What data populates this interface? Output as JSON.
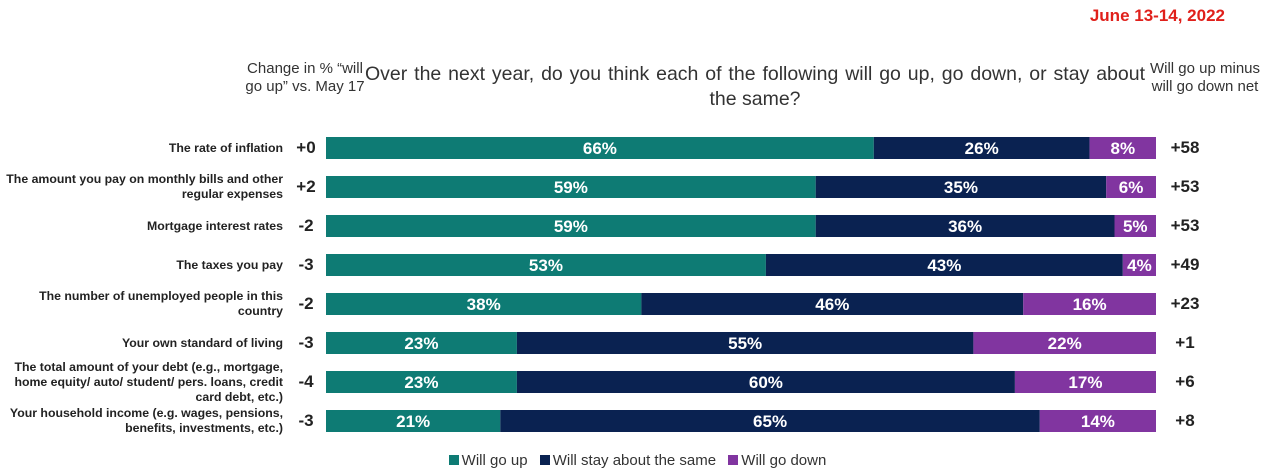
{
  "date": "June 13-14, 2022",
  "left_header": "Change in % “will go up” vs. May 17",
  "right_header": "Will go up minus will go down net",
  "chart_data": {
    "type": "bar",
    "orientation": "horizontal",
    "stacked": true,
    "title": "Over the next year, do you think each of the following will go up, go down, or stay about the same?",
    "categories": [
      "The rate of inflation",
      "The amount you pay on monthly bills and other regular expenses",
      "Mortgage interest rates",
      "The taxes you pay",
      "The number of unemployed people in this country",
      "Your own standard of living",
      "The total amount of your debt (e.g., mortgage, home equity/ auto/ student/ pers. loans, credit card debt, etc.)",
      "Your household income (e.g. wages, pensions, benefits, investments, etc.)"
    ],
    "series": [
      {
        "name": "Will go up",
        "color": "#0e7b74",
        "values": [
          66,
          59,
          59,
          53,
          38,
          23,
          23,
          21
        ]
      },
      {
        "name": "Will stay about the same",
        "color": "#0a2251",
        "values": [
          26,
          35,
          36,
          43,
          46,
          55,
          60,
          65
        ]
      },
      {
        "name": "Will go down",
        "color": "#8135a0",
        "values": [
          8,
          6,
          5,
          4,
          16,
          22,
          17,
          14
        ]
      }
    ],
    "change_vs_may17": [
      "+0",
      "+2",
      "-2",
      "-3",
      "-2",
      "-3",
      "-4",
      "-3"
    ],
    "net": [
      "+58",
      "+53",
      "+53",
      "+49",
      "+23",
      "+1",
      "+6",
      "+8"
    ],
    "value_suffix": "%",
    "legend_position": "bottom"
  }
}
